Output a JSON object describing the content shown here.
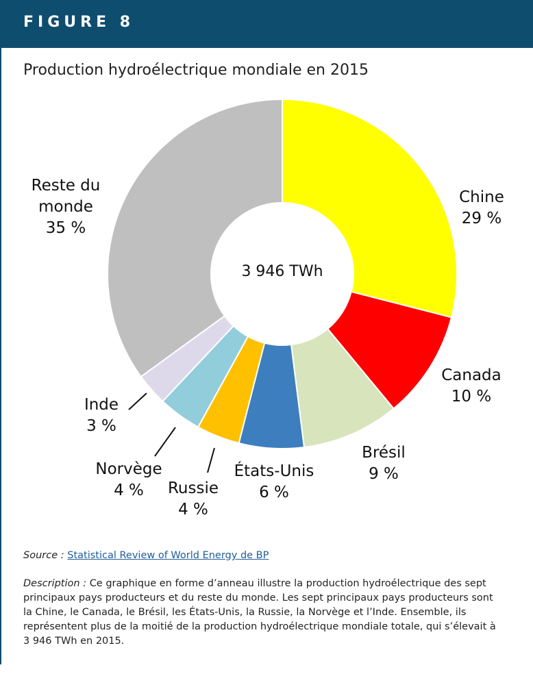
{
  "header": {
    "label": "FIGURE 8"
  },
  "chart_data": {
    "type": "donut",
    "title": "Production hydroélectrique mondiale en 2015",
    "categories": [
      "Chine",
      "Canada",
      "Brésil",
      "États-Unis",
      "Russie",
      "Norvège",
      "Inde",
      "Reste du monde"
    ],
    "values": [
      29,
      10,
      9,
      6,
      4,
      4,
      3,
      35
    ],
    "value_labels": [
      "29 %",
      "10 %",
      "9 %",
      "6 %",
      "4 %",
      "4 %",
      "3 %",
      "35 %"
    ],
    "colors": [
      "#ffff00",
      "#ff0000",
      "#d8e4bc",
      "#3d7ebf",
      "#ffc000",
      "#92cddc",
      "#ddd9eb",
      "#bfbfbf"
    ],
    "center_label": "3 946 TWh"
  },
  "source": {
    "label": "Source :",
    "link": "Statistical Review of World Energy de BP"
  },
  "description": {
    "label": "Description :",
    "text": "Ce graphique en forme d’anneau illustre la production hydroélectrique des sept principaux pays producteurs et du reste du monde. Les sept principaux pays producteurs sont la Chine, le Canada, le Brésil, les États-Unis, la Russie, la Norvège et l’Inde. Ensemble, ils représentent plus de la moitié de la production hydroélectrique mondiale totale, qui s’élevait à 3 946 TWh en 2015."
  }
}
